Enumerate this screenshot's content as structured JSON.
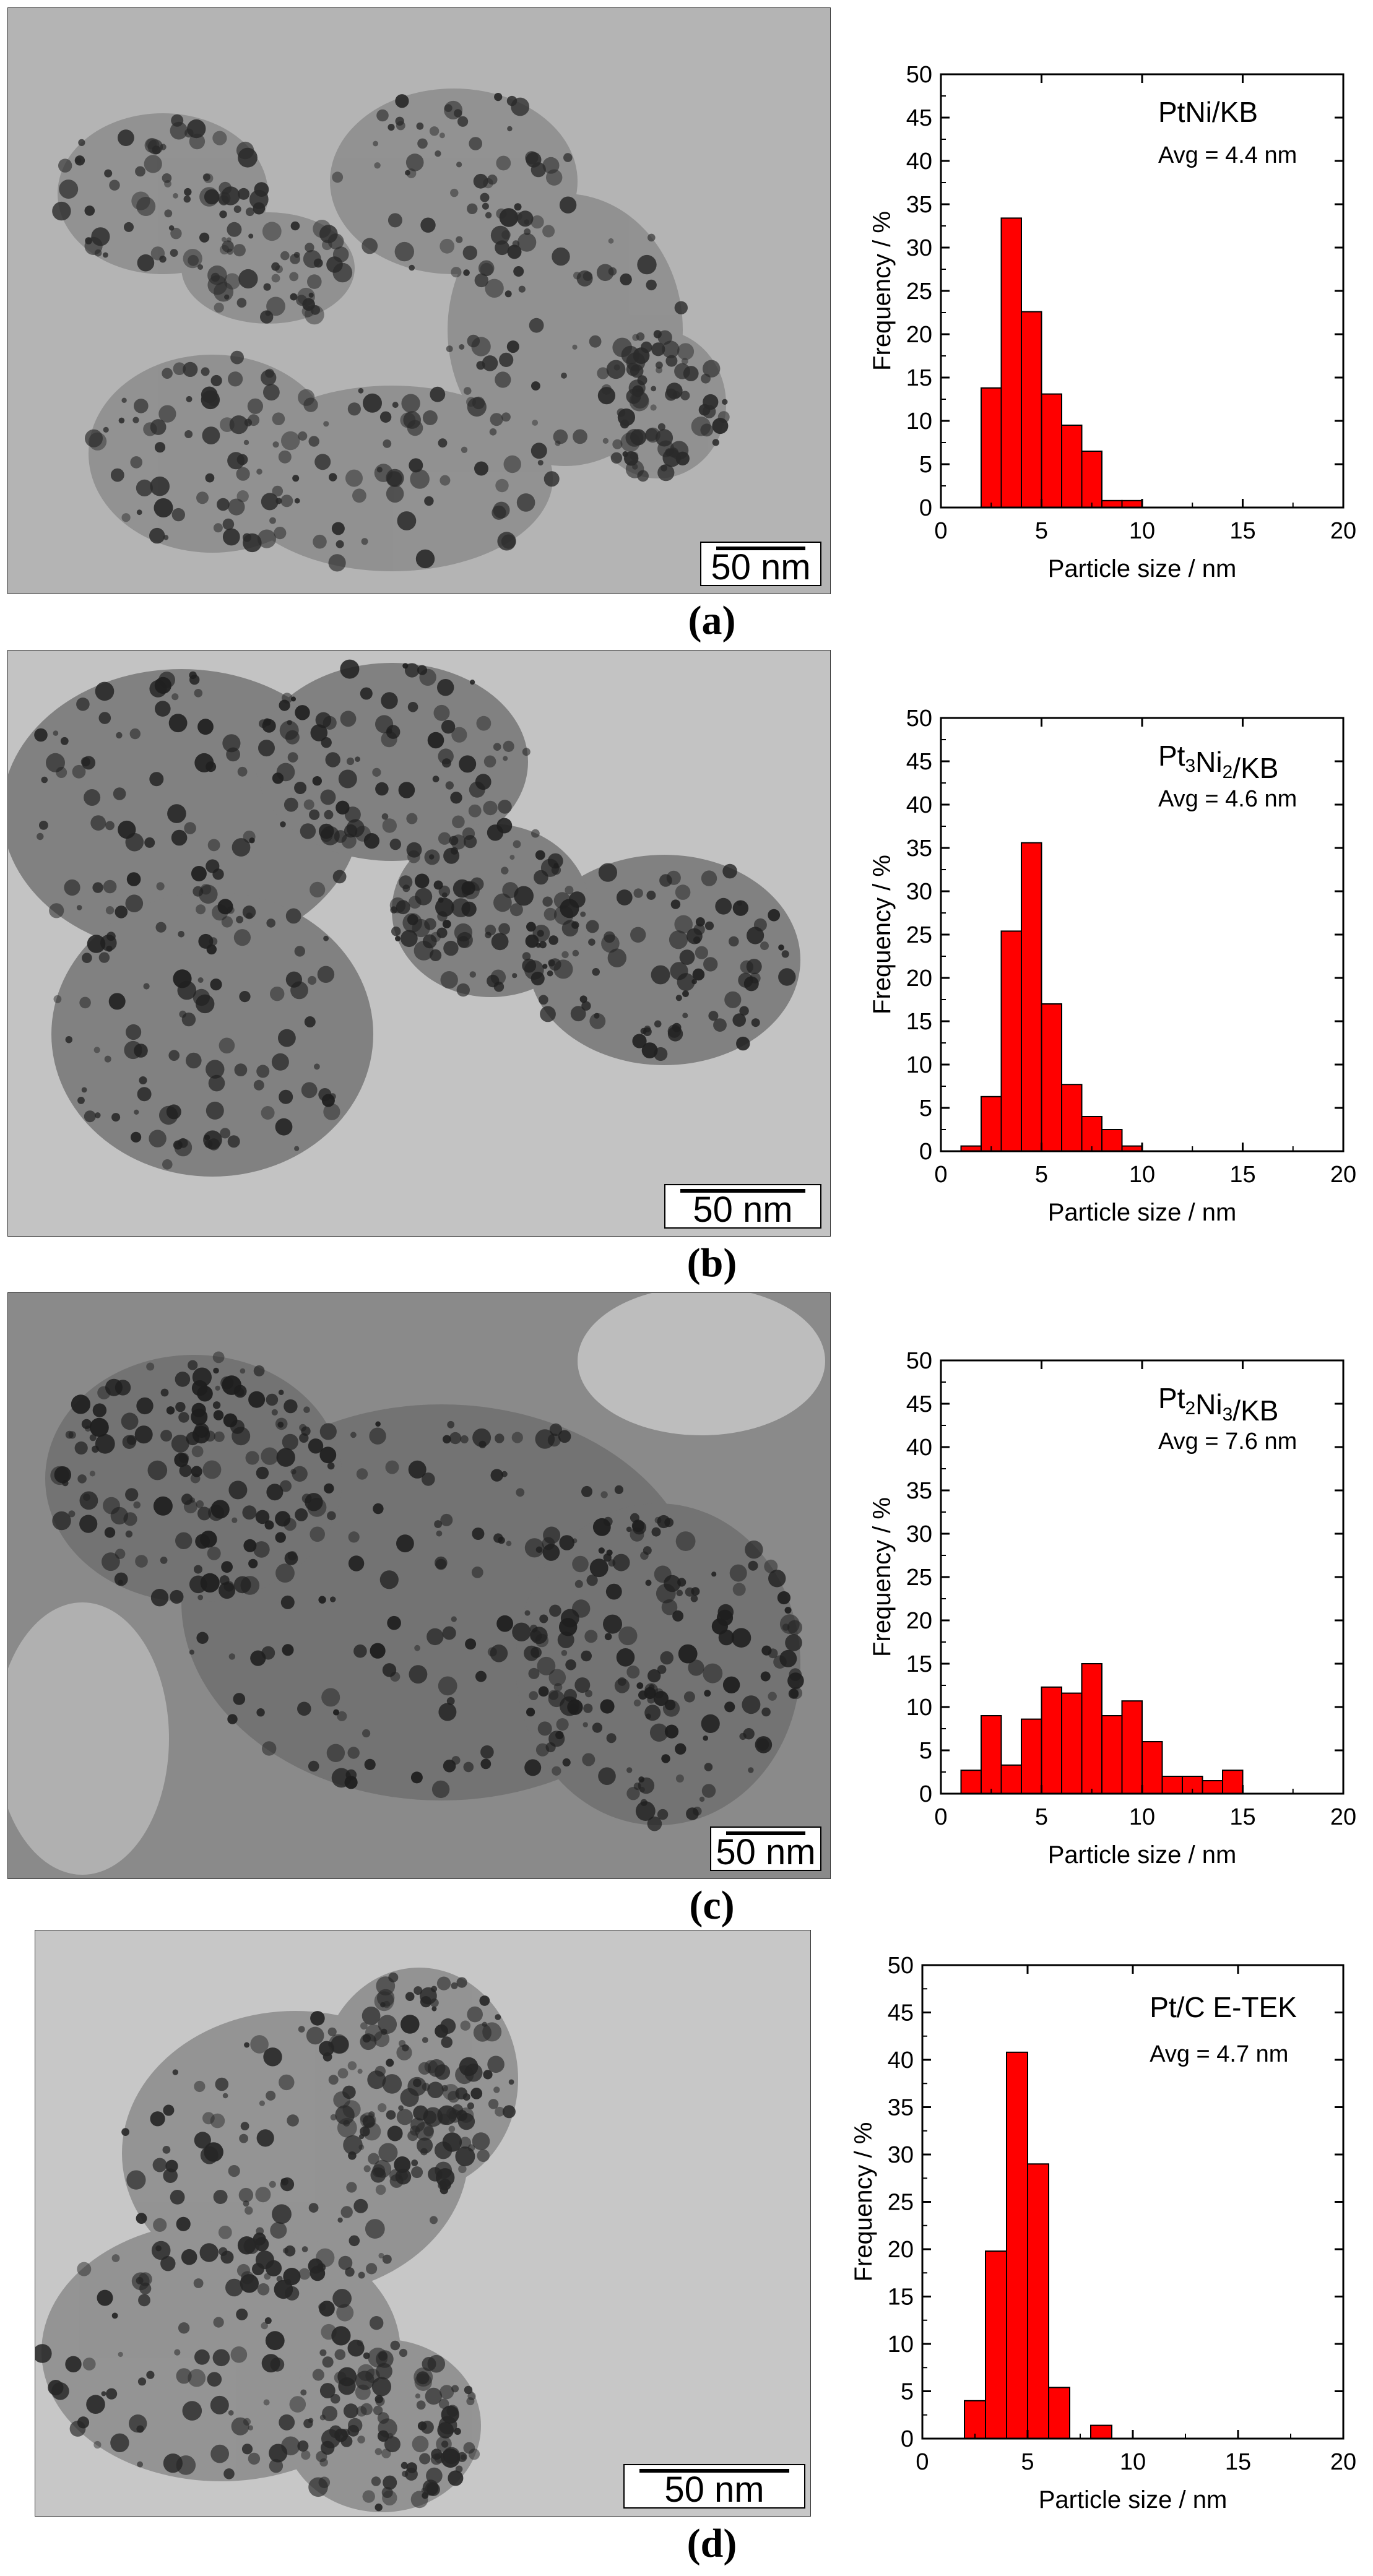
{
  "panels": [
    {
      "label": "(a)",
      "scale_label": "50 nm"
    },
    {
      "label": "(b)",
      "scale_label": "50 nm"
    },
    {
      "label": "(c)",
      "scale_label": "50 nm"
    },
    {
      "label": "(d)",
      "scale_label": "50 nm"
    }
  ],
  "colors": {
    "bar_fill": "#ff0000",
    "bar_stroke": "#000000"
  },
  "chart_data": [
    {
      "type": "bar",
      "legend_name": "PtNi/KB",
      "legend_parts": [
        {
          "t": "PtNi/KB",
          "sub": false
        }
      ],
      "avg_label": "Avg = 4.4 nm",
      "xlabel": "Particle size / nm",
      "ylabel": "Frequency / %",
      "xlim": [
        0,
        20
      ],
      "ylim": [
        0,
        50
      ],
      "xticks": [
        0,
        5,
        10,
        15,
        20
      ],
      "yticks": [
        0,
        5,
        10,
        15,
        20,
        25,
        30,
        35,
        40,
        45,
        50
      ],
      "bin_width": 1,
      "bins_start": [
        2,
        3,
        4,
        5,
        6,
        7,
        8,
        9
      ],
      "values": [
        13.8,
        33.4,
        22.6,
        13.1,
        9.5,
        6.5,
        0.8,
        0.8
      ]
    },
    {
      "type": "bar",
      "legend_name": "Pt3Ni2/KB",
      "legend_parts": [
        {
          "t": "Pt",
          "sub": false
        },
        {
          "t": "3",
          "sub": true
        },
        {
          "t": "Ni",
          "sub": false
        },
        {
          "t": "2",
          "sub": true
        },
        {
          "t": "/KB",
          "sub": false
        }
      ],
      "avg_label": "Avg = 4.6 nm",
      "xlabel": "Particle size / nm",
      "ylabel": "Frequency / %",
      "xlim": [
        0,
        20
      ],
      "ylim": [
        0,
        50
      ],
      "xticks": [
        0,
        5,
        10,
        15,
        20
      ],
      "yticks": [
        0,
        5,
        10,
        15,
        20,
        25,
        30,
        35,
        40,
        45,
        50
      ],
      "bin_width": 1,
      "bins_start": [
        1,
        2,
        3,
        4,
        5,
        6,
        7,
        8,
        9
      ],
      "values": [
        0.6,
        6.3,
        25.4,
        35.6,
        17.0,
        7.7,
        4.0,
        2.5,
        0.6
      ]
    },
    {
      "type": "bar",
      "legend_name": "Pt2Ni3/KB",
      "legend_parts": [
        {
          "t": "Pt",
          "sub": false
        },
        {
          "t": "2",
          "sub": true
        },
        {
          "t": "Ni",
          "sub": false
        },
        {
          "t": "3",
          "sub": true
        },
        {
          "t": "/KB",
          "sub": false
        }
      ],
      "avg_label": "Avg = 7.6 nm",
      "xlabel": "Particle size / nm",
      "ylabel": "Frequency / %",
      "xlim": [
        0,
        20
      ],
      "ylim": [
        0,
        50
      ],
      "xticks": [
        0,
        5,
        10,
        15,
        20
      ],
      "yticks": [
        0,
        5,
        10,
        15,
        20,
        25,
        30,
        35,
        40,
        45,
        50
      ],
      "bin_width": 1,
      "bins_start": [
        1,
        2,
        3,
        4,
        5,
        6,
        7,
        8,
        9,
        10,
        11,
        12,
        13,
        14
      ],
      "values": [
        2.7,
        9.0,
        3.3,
        8.6,
        12.3,
        11.6,
        15.0,
        9.0,
        10.7,
        6.0,
        2.0,
        2.0,
        1.5,
        2.7
      ]
    },
    {
      "type": "bar",
      "legend_name": "Pt/C E-TEK",
      "legend_parts": [
        {
          "t": "Pt/C E-TEK",
          "sub": false
        }
      ],
      "avg_label": "Avg = 4.7 nm",
      "xlabel": "Particle size / nm",
      "ylabel": "Frequency / %",
      "xlim": [
        0,
        20
      ],
      "ylim": [
        0,
        50
      ],
      "xticks": [
        0,
        5,
        10,
        15,
        20
      ],
      "yticks": [
        0,
        5,
        10,
        15,
        20,
        25,
        30,
        35,
        40,
        45,
        50
      ],
      "bin_width": 1,
      "bins_start": [
        2,
        3,
        4,
        5,
        6,
        8
      ],
      "values": [
        4.0,
        19.8,
        40.8,
        29.0,
        5.4,
        1.4
      ]
    }
  ]
}
